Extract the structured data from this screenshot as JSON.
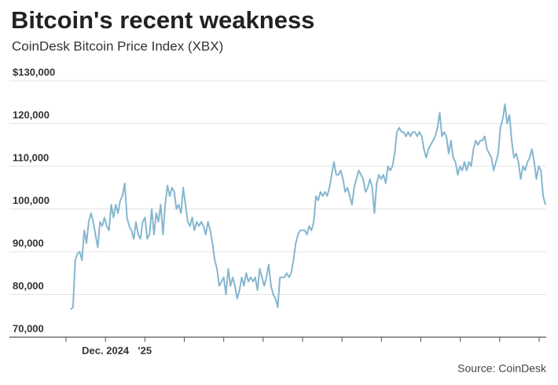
{
  "chart_data": {
    "type": "line",
    "title": "Bitcoin's recent weakness",
    "subtitle": "CoinDesk Bitcoin Price Index (XBX)",
    "source": "Source: CoinDesk",
    "xticks": [
      "2024-11",
      "2024-12",
      "2025-01",
      "2025-02",
      "2025-03",
      "2025-04",
      "2025-05",
      "2025-06",
      "2025-07",
      "2025-08",
      "2025-09",
      "2025-10",
      "2025-11"
    ],
    "xtick_labels": [
      null,
      "Dec. 2024",
      "'25",
      null,
      null,
      null,
      null,
      null,
      null,
      null,
      null,
      null,
      null
    ],
    "ylim": [
      70000,
      130000
    ],
    "yticks": [
      {
        "value": 70000,
        "label": "70,000"
      },
      {
        "value": 80000,
        "label": "80,000"
      },
      {
        "value": 90000,
        "label": "90,000"
      },
      {
        "value": 100000,
        "label": "100,000"
      },
      {
        "value": 110000,
        "label": "110,000"
      },
      {
        "value": 120000,
        "label": "120,000"
      },
      {
        "value": 130000,
        "label": "$130,000"
      }
    ],
    "grid": true,
    "series": [
      {
        "name": "XBX",
        "color": "#86b6cf",
        "values": [
          76500,
          77000,
          88000,
          89500,
          90000,
          88000,
          95000,
          92000,
          97000,
          99000,
          97000,
          94000,
          91000,
          97000,
          96000,
          98000,
          96000,
          95000,
          101000,
          98000,
          101000,
          99000,
          102000,
          103000,
          106000,
          98000,
          96000,
          95000,
          93000,
          97000,
          94000,
          93000,
          97000,
          98000,
          93000,
          94000,
          100000,
          94000,
          99000,
          97000,
          101000,
          94000,
          101000,
          105500,
          103000,
          105000,
          104000,
          100000,
          101000,
          99000,
          105000,
          101000,
          97000,
          96000,
          98000,
          95000,
          97000,
          96000,
          97000,
          96000,
          94000,
          97000,
          95000,
          92000,
          88000,
          86000,
          82000,
          83000,
          84000,
          80000,
          86000,
          82000,
          84000,
          82000,
          79000,
          81000,
          84000,
          82000,
          85000,
          83000,
          84000,
          83000,
          84000,
          81000,
          86000,
          84000,
          82000,
          84000,
          87000,
          82000,
          80000,
          79000,
          77000,
          84000,
          84000,
          84000,
          85000,
          84000,
          85000,
          88000,
          92000,
          94000,
          95000,
          95000,
          95000,
          94000,
          96000,
          95000,
          97000,
          103000,
          102000,
          104000,
          103000,
          104000,
          103000,
          105000,
          108000,
          111000,
          108000,
          108000,
          109000,
          107000,
          104000,
          105000,
          103000,
          101000,
          105000,
          107000,
          109000,
          108000,
          107000,
          104000,
          105000,
          107000,
          105000,
          99000,
          106000,
          108000,
          107000,
          108000,
          106000,
          110000,
          109000,
          110000,
          113000,
          118000,
          119000,
          118000,
          118000,
          117000,
          118000,
          117000,
          118000,
          118000,
          117000,
          118000,
          117000,
          114000,
          112000,
          114000,
          115000,
          116000,
          117000,
          119000,
          122500,
          117000,
          118000,
          117000,
          113000,
          116000,
          112000,
          111000,
          108000,
          110000,
          109000,
          111000,
          109000,
          111000,
          110000,
          114000,
          116000,
          115000,
          116000,
          116000,
          117000,
          114000,
          113000,
          112000,
          109000,
          111000,
          113000,
          119000,
          121000,
          124500,
          120000,
          122000,
          116000,
          112000,
          113000,
          111000,
          107000,
          110000,
          109000,
          111000,
          112000,
          114000,
          111000,
          107000,
          110000,
          109000,
          103000,
          101000
        ]
      }
    ]
  }
}
